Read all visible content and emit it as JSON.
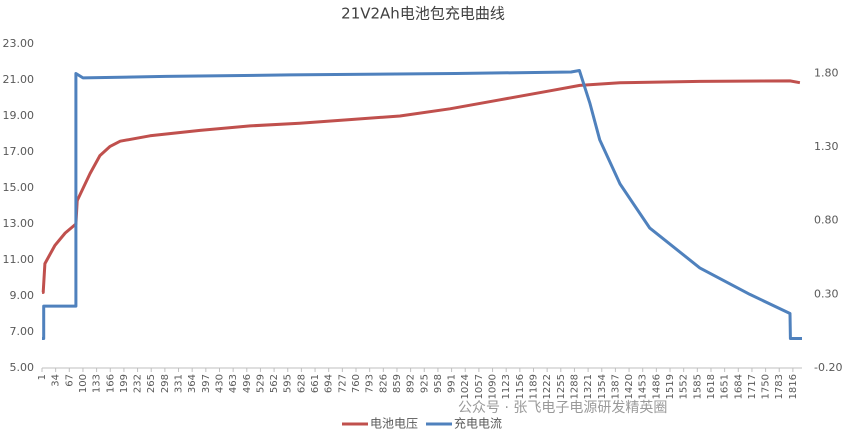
{
  "chart_data": {
    "type": "line",
    "title": "21V2Ah电池包充电曲线",
    "annotation": "公众号 · 张飞电子电源研发精英圈",
    "xlim": [
      1,
      1838
    ],
    "xticks": [
      1,
      34,
      67,
      100,
      133,
      166,
      199,
      232,
      265,
      298,
      331,
      364,
      397,
      430,
      463,
      496,
      529,
      562,
      595,
      628,
      661,
      694,
      727,
      760,
      793,
      826,
      859,
      892,
      925,
      958,
      991,
      1024,
      1057,
      1090,
      1123,
      1156,
      1189,
      1222,
      1255,
      1288,
      1321,
      1354,
      1387,
      1420,
      1453,
      1486,
      1519,
      1552,
      1585,
      1618,
      1651,
      1684,
      1717,
      1750,
      1783,
      1816
    ],
    "ylim": [
      5,
      23
    ],
    "yticks": [
      {
        "value": 5,
        "label": "5.00"
      },
      {
        "value": 7,
        "label": "7.00"
      },
      {
        "value": 9,
        "label": "9.00"
      },
      {
        "value": 11,
        "label": "11.00"
      },
      {
        "value": 13,
        "label": "13.00"
      },
      {
        "value": 15,
        "label": "15.00"
      },
      {
        "value": 17,
        "label": "17.00"
      },
      {
        "value": 19,
        "label": "19.00"
      },
      {
        "value": 21,
        "label": "21.00"
      },
      {
        "value": 23,
        "label": "23.00"
      }
    ],
    "y2lim": [
      -0.2,
      2.0
    ],
    "y2ticks": [
      {
        "value": -0.2,
        "label": "-0.20"
      },
      {
        "value": 0.3,
        "label": "0.30"
      },
      {
        "value": 0.8,
        "label": "0.80"
      },
      {
        "value": 1.3,
        "label": "1.30"
      },
      {
        "value": 1.8,
        "label": "1.80"
      }
    ],
    "grid": false,
    "legend": "bottom",
    "series": [
      {
        "name": "电池电压",
        "color": "#c0504d",
        "x": [
          1,
          4,
          8,
          32,
          57,
          83,
          86,
          117,
          141,
          165,
          190,
          262,
          383,
          504,
          624,
          745,
          866,
          987,
          1108,
          1229,
          1301,
          1398,
          1591,
          1809,
          1833
        ],
        "values": [
          9.2,
          9.2,
          10.8,
          11.8,
          12.5,
          13.0,
          14.3,
          15.8,
          16.8,
          17.3,
          17.6,
          17.9,
          18.2,
          18.45,
          18.6,
          18.8,
          19.0,
          19.4,
          19.9,
          20.4,
          20.7,
          20.85,
          20.92,
          20.95,
          20.85
        ]
      },
      {
        "name": "充电电流",
        "color": "#4f81bd",
        "axis": "y2",
        "x": [
          1,
          5,
          5,
          83,
          83,
          100,
          300,
          600,
          1000,
          1280,
          1300,
          1325,
          1349,
          1398,
          1470,
          1591,
          1712,
          1809,
          1810,
          1838
        ],
        "values": [
          0.0,
          0.0,
          0.22,
          0.22,
          1.8,
          1.77,
          1.78,
          1.79,
          1.8,
          1.81,
          1.82,
          1.6,
          1.35,
          1.05,
          0.75,
          0.48,
          0.3,
          0.17,
          0.0,
          0.0
        ]
      }
    ]
  }
}
